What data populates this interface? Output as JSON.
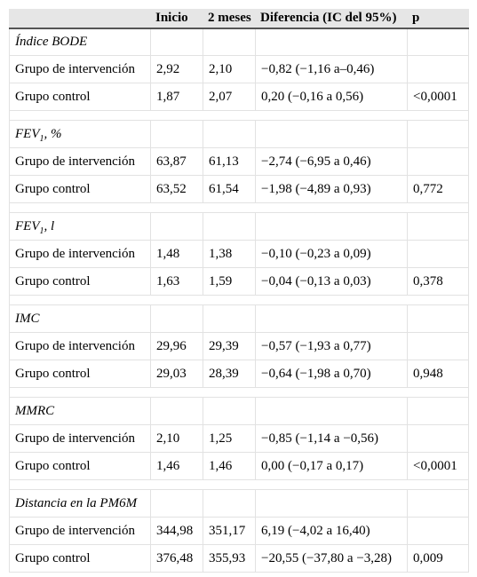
{
  "header": {
    "col_label": "",
    "inicio": "Inicio",
    "meses": "2 meses",
    "diferencia": "Diferencia (IC del 95%)",
    "p": "p"
  },
  "sections": [
    {
      "title": "Índice BODE",
      "rows": [
        {
          "group": "Grupo de intervención",
          "inicio": "2,92",
          "meses": "2,10",
          "diferencia": "−0,82 (−1,16 a–0,46)",
          "p": ""
        },
        {
          "group": "Grupo control",
          "inicio": "1,87",
          "meses": "2,07",
          "diferencia": "0,20 (−0,16 a 0,56)",
          "p": "<0,0001"
        }
      ]
    },
    {
      "title_pre": "FEV",
      "title_sub": "1",
      "title_post": ", %",
      "rows": [
        {
          "group": "Grupo de intervención",
          "inicio": "63,87",
          "meses": "61,13",
          "diferencia": "−2,74 (−6,95 a 0,46)",
          "p": ""
        },
        {
          "group": "Grupo control",
          "inicio": "63,52",
          "meses": "61,54",
          "diferencia": "−1,98 (−4,89 a 0,93)",
          "p": "0,772"
        }
      ]
    },
    {
      "title_pre": "FEV",
      "title_sub": "1",
      "title_post": ", l",
      "rows": [
        {
          "group": "Grupo de intervención",
          "inicio": "1,48",
          "meses": "1,38",
          "diferencia": "−0,10 (−0,23 a 0,09)",
          "p": ""
        },
        {
          "group": "Grupo control",
          "inicio": "1,63",
          "meses": "1,59",
          "diferencia": "−0,04 (−0,13 a 0,03)",
          "p": "0,378"
        }
      ]
    },
    {
      "title": "IMC",
      "rows": [
        {
          "group": "Grupo de intervención",
          "inicio": "29,96",
          "meses": "29,39",
          "diferencia": "−0,57 (−1,93 a 0,77)",
          "p": ""
        },
        {
          "group": "Grupo control",
          "inicio": "29,03",
          "meses": "28,39",
          "diferencia": "−0,64 (−1,98 a 0,70)",
          "p": "0,948"
        }
      ]
    },
    {
      "title": "MMRC",
      "rows": [
        {
          "group": "Grupo de intervención",
          "inicio": "2,10",
          "meses": "1,25",
          "diferencia": "−0,85 (−1,14 a −0,56)",
          "p": ""
        },
        {
          "group": "Grupo control",
          "inicio": "1,46",
          "meses": "1,46",
          "diferencia": "0,00 (−0,17 a 0,17)",
          "p": "<0,0001"
        }
      ]
    },
    {
      "title": "Distancia en la PM6M",
      "rows": [
        {
          "group": "Grupo de intervención",
          "inicio": "344,98",
          "meses": "351,17",
          "diferencia": "6,19 (−4,02 a 16,40)",
          "p": ""
        },
        {
          "group": "Grupo control",
          "inicio": "376,48",
          "meses": "355,93",
          "diferencia": "−20,55 (−37,80 a −3,28)",
          "p": "0,009"
        }
      ]
    }
  ]
}
